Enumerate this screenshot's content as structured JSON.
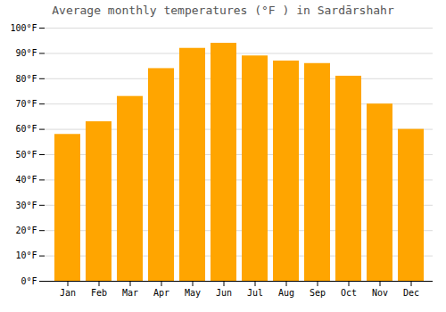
{
  "chart_data": {
    "type": "bar",
    "title": "Average monthly temperatures (°F ) in Sardārshahr",
    "categories": [
      "Jan",
      "Feb",
      "Mar",
      "Apr",
      "May",
      "Jun",
      "Jul",
      "Aug",
      "Sep",
      "Oct",
      "Nov",
      "Dec"
    ],
    "values": [
      58,
      63,
      73,
      84,
      92,
      94,
      89,
      87,
      86,
      81,
      70,
      60
    ],
    "color": "#FFA500",
    "ylim": [
      0,
      100
    ],
    "yticks": [
      {
        "value": 0,
        "label": "0°F"
      },
      {
        "value": 10,
        "label": "10°F"
      },
      {
        "value": 20,
        "label": "20°F"
      },
      {
        "value": 30,
        "label": "30°F"
      },
      {
        "value": 40,
        "label": "40°F"
      },
      {
        "value": 50,
        "label": "50°F"
      },
      {
        "value": 60,
        "label": "60°F"
      },
      {
        "value": 70,
        "label": "70°F"
      },
      {
        "value": 80,
        "label": "80°F"
      },
      {
        "value": 90,
        "label": "90°F"
      },
      {
        "value": 100,
        "label": "100°F"
      }
    ],
    "grid": true
  }
}
